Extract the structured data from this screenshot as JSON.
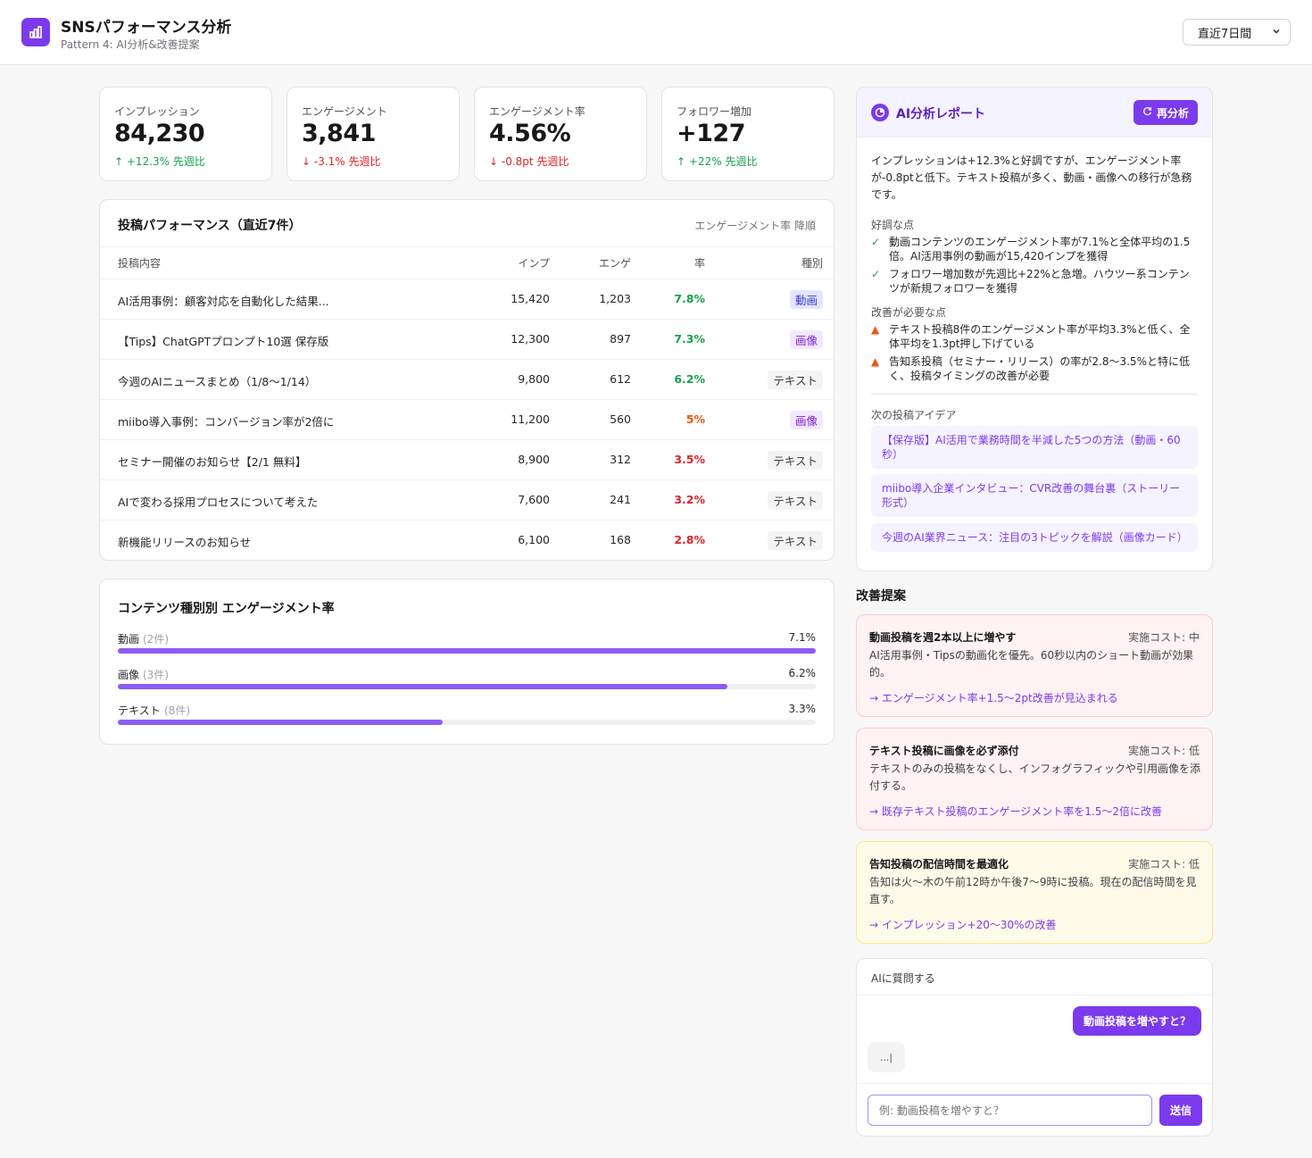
{
  "header": {
    "title": "SNSパフォーマンス分析",
    "subtitle": "Pattern 4: AI分析&改善提案",
    "period": "直近7日間"
  },
  "kpis": [
    {
      "label": "インプレッション",
      "value": "84,230",
      "delta": "+12.3%",
      "suffix": "先週比",
      "trend": "up"
    },
    {
      "label": "エンゲージメント",
      "value": "3,841",
      "delta": "-3.1%",
      "suffix": "先週比",
      "trend": "down"
    },
    {
      "label": "エンゲージメント率",
      "value": "4.56%",
      "delta": "-0.8pt",
      "suffix": "先週比",
      "trend": "down"
    },
    {
      "label": "フォロワー増加",
      "value": "+127",
      "delta": "+22%",
      "suffix": "先週比",
      "trend": "up"
    }
  ],
  "posts": {
    "title": "投稿パフォーマンス（直近7件）",
    "sort": "エンゲージメント率 降順",
    "columns": [
      "投稿内容",
      "インプ",
      "エンゲ",
      "率",
      "種別"
    ],
    "rows": [
      {
        "content": "AI活用事例：顧客対応を自動化した結果...",
        "imp": "15,420",
        "eng": "1,203",
        "rate": "7.8%",
        "level": "up",
        "type": "動画",
        "kind": "video"
      },
      {
        "content": "【Tips】ChatGPTプロンプト10選 保存版",
        "imp": "12,300",
        "eng": "897",
        "rate": "7.3%",
        "level": "up",
        "type": "画像",
        "kind": "image"
      },
      {
        "content": "今週のAIニュースまとめ（1/8〜1/14）",
        "imp": "9,800",
        "eng": "612",
        "rate": "6.2%",
        "level": "up",
        "type": "テキスト",
        "kind": "text"
      },
      {
        "content": "miibo導入事例：コンバージョン率が2倍に",
        "imp": "11,200",
        "eng": "560",
        "rate": "5%",
        "level": "mid",
        "type": "画像",
        "kind": "image"
      },
      {
        "content": "セミナー開催のお知らせ【2/1 無料】",
        "imp": "8,900",
        "eng": "312",
        "rate": "3.5%",
        "level": "down",
        "type": "テキスト",
        "kind": "text"
      },
      {
        "content": "AIで変わる採用プロセスについて考えた",
        "imp": "7,600",
        "eng": "241",
        "rate": "3.2%",
        "level": "down",
        "type": "テキスト",
        "kind": "text"
      },
      {
        "content": "新機能リリースのお知らせ",
        "imp": "6,100",
        "eng": "168",
        "rate": "2.8%",
        "level": "down",
        "type": "テキスト",
        "kind": "text"
      }
    ]
  },
  "content_types": {
    "title": "コンテンツ種別別 エンゲージメント率",
    "items": [
      {
        "name": "動画",
        "count": "(2件)",
        "value_label": "7.1%",
        "fraction": 1.0
      },
      {
        "name": "画像",
        "count": "(3件)",
        "value_label": "6.2%",
        "fraction": 0.873
      },
      {
        "name": "テキスト",
        "count": "(8件)",
        "value_label": "3.3%",
        "fraction": 0.465
      }
    ]
  },
  "ai_report": {
    "title": "AI分析レポート",
    "reanalyze": "再分析",
    "summary": "インプレッションは+12.3%と好調ですが、エンゲージメント率が-0.8ptと低下。テキスト投稿が多く、動画・画像への移行が急務です。",
    "good_title": "好調な点",
    "good": [
      "動画コンテンツのエンゲージメント率が7.1%と全体平均の1.5倍。AI活用事例の動画が15,420インプを獲得",
      "フォロワー増加数が先週比+22%と急増。ハウツー系コンテンツが新規フォロワーを獲得"
    ],
    "bad_title": "改善が必要な点",
    "bad": [
      "テキスト投稿8件のエンゲージメント率が平均3.3%と低く、全体平均を1.3pt押し下げている",
      "告知系投稿（セミナー・リリース）の率が2.8〜3.5%と特に低く、投稿タイミングの改善が必要"
    ],
    "ideas_title": "次の投稿アイデア",
    "ideas": [
      "【保存版】AI活用で業務時間を半減した5つの方法（動画・60秒）",
      "miibo導入企業インタビュー：CVR改善の舞台裏（ストーリー形式）",
      "今週のAI業界ニュース：注目の3トピックを解説（画像カード）"
    ]
  },
  "suggestions": {
    "title": "改善提案",
    "items": [
      {
        "title": "動画投稿を週2本以上に増やす",
        "cost": "実施コスト: 中",
        "desc": "AI活用事例・Tipsの動画化を優先。60秒以内のショート動画が効果的。",
        "effect": "→ エンゲージメント率+1.5〜2pt改善が見込まれる",
        "bg": "#fef2f2",
        "border": "#fecaca"
      },
      {
        "title": "テキスト投稿に画像を必ず添付",
        "cost": "実施コスト: 低",
        "desc": "テキストのみの投稿をなくし、インフォグラフィックや引用画像を添付する。",
        "effect": "→ 既存テキスト投稿のエンゲージメント率を1.5〜2倍に改善",
        "bg": "#fef2f2",
        "border": "#fecaca"
      },
      {
        "title": "告知投稿の配信時間を最適化",
        "cost": "実施コスト: 低",
        "desc": "告知は火〜木の午前12時か午後7〜9時に投稿。現在の配信時間を見直す。",
        "effect": "→ インプレッション+20〜30%の改善",
        "bg": "#fefce8",
        "border": "#fde68a"
      }
    ]
  },
  "chat": {
    "title": "AIに質問する",
    "user_message": "動画投稿を増やすと？",
    "typing": "...|",
    "placeholder": "例: 動画投稿を増やすと？",
    "send": "送信"
  }
}
